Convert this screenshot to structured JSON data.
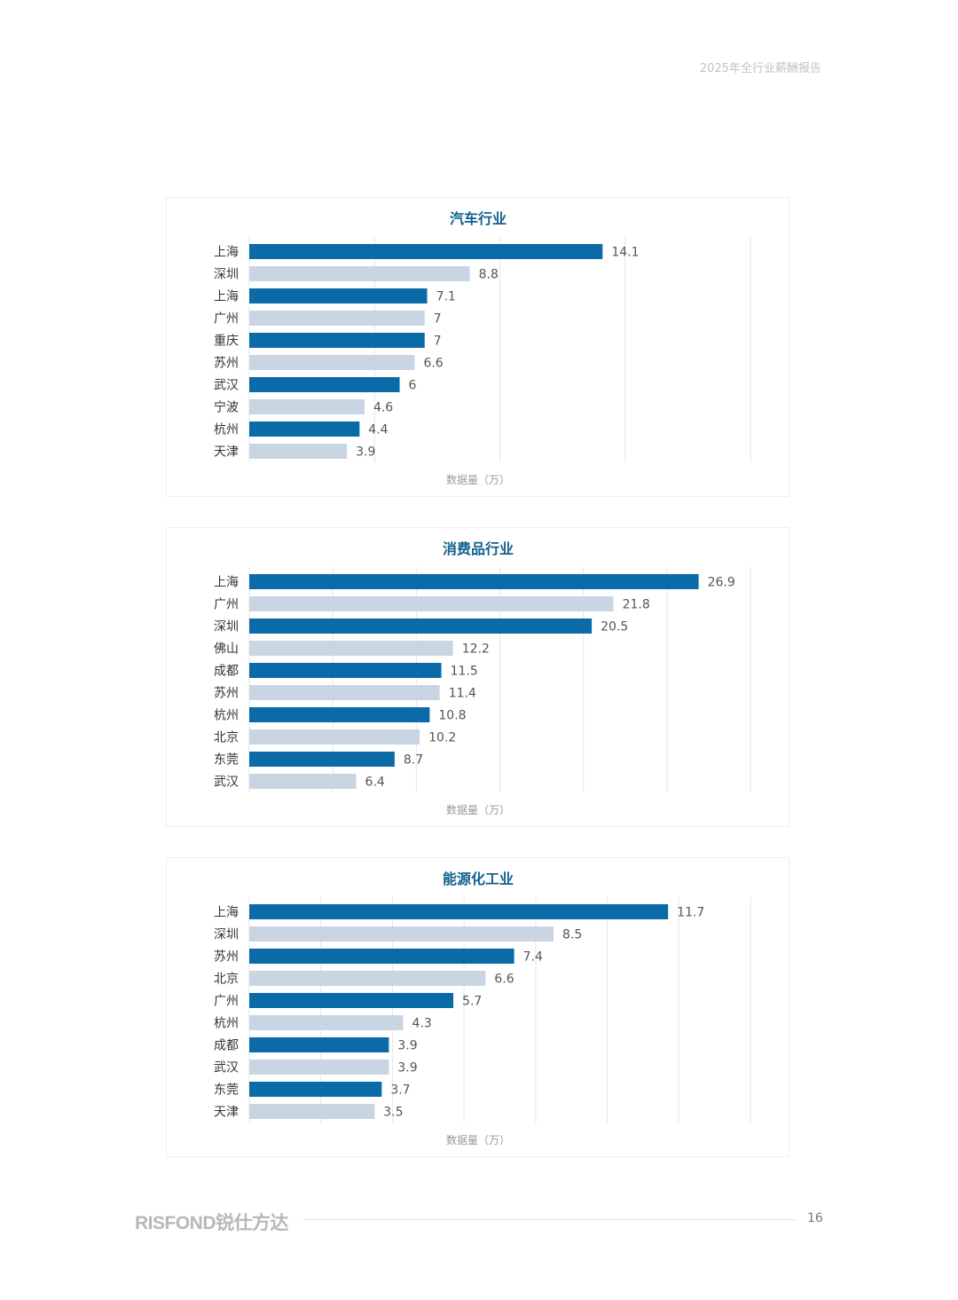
{
  "header": {
    "title": "2025年全行业薪酬报告"
  },
  "footer": {
    "brand": "RISFOND锐仕方达",
    "page_number": "16"
  },
  "colors": {
    "primary_bar": "#0b6aa8",
    "secondary_bar": "#c9d5e3",
    "title": "#11618f",
    "grid": "#e6e6e6"
  },
  "chart_data": [
    {
      "type": "bar",
      "orientation": "horizontal",
      "title": "汽车行业",
      "xlabel": "数据量（万）",
      "xlim": [
        0,
        20
      ],
      "grid": true,
      "categories": [
        "上海",
        "深圳",
        "上海",
        "广州",
        "重庆",
        "苏州",
        "武汉",
        "宁波",
        "杭州",
        "天津"
      ],
      "values": [
        14.1,
        8.8,
        7.1,
        7,
        7,
        6.6,
        6,
        4.6,
        4.4,
        3.9
      ],
      "value_labels": [
        "14.1",
        "8.8",
        "7.1",
        "7",
        "7",
        "6.6",
        "6",
        "4.6",
        "4.4",
        "3.9"
      ]
    },
    {
      "type": "bar",
      "orientation": "horizontal",
      "title": "消费品行业",
      "xlabel": "数据量（万）",
      "xlim": [
        0,
        30
      ],
      "grid": true,
      "categories": [
        "上海",
        "广州",
        "深圳",
        "佛山",
        "成都",
        "苏州",
        "杭州",
        "北京",
        "东莞",
        "武汉"
      ],
      "values": [
        26.9,
        21.8,
        20.5,
        12.2,
        11.5,
        11.4,
        10.8,
        10.2,
        8.7,
        6.4
      ],
      "value_labels": [
        "26.9",
        "21.8",
        "20.5",
        "12.2",
        "11.5",
        "11.4",
        "10.8",
        "10.2",
        "8.7",
        "6.4"
      ]
    },
    {
      "type": "bar",
      "orientation": "horizontal",
      "title": "能源化工业",
      "xlabel": "数据量（万）",
      "xlim": [
        0,
        14
      ],
      "grid": true,
      "categories": [
        "上海",
        "深圳",
        "苏州",
        "北京",
        "广州",
        "杭州",
        "成都",
        "武汉",
        "东莞",
        "天津"
      ],
      "values": [
        11.7,
        8.5,
        7.4,
        6.6,
        5.7,
        4.3,
        3.9,
        3.9,
        3.7,
        3.5
      ],
      "value_labels": [
        "11.7",
        "8.5",
        "7.4",
        "6.6",
        "5.7",
        "4.3",
        "3.9",
        "3.9",
        "3.7",
        "3.5"
      ]
    }
  ]
}
